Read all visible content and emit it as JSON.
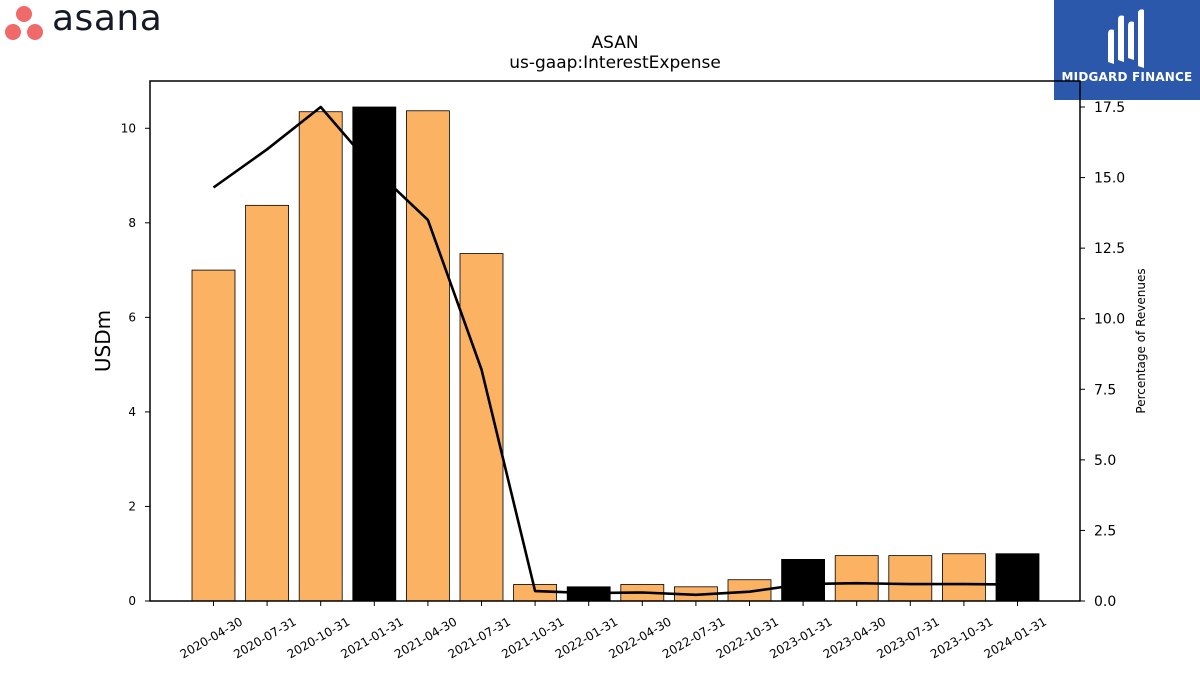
{
  "brand": {
    "company_logo_text": "asana",
    "company_logo_color": "#f06a6a",
    "publisher_logo_text": "MIDGARD FINANCE",
    "publisher_color": "#2b58ab"
  },
  "chart_data": {
    "type": "bar",
    "title": "ASAN",
    "subtitle": "us-gaap:InterestExpense",
    "ylabel": "USDm",
    "y2label": "Percentage of Revenues",
    "ylim": [
      0,
      11
    ],
    "y2lim": [
      0,
      17.5
    ],
    "y_ticks": [
      "0",
      "2",
      "4",
      "6",
      "8",
      "10"
    ],
    "y2_ticks": [
      "0.0",
      "2.5",
      "5.0",
      "7.5",
      "10.0",
      "12.5",
      "15.0",
      "17.5"
    ],
    "categories": [
      "2020-04-30",
      "2020-07-31",
      "2020-10-31",
      "2021-01-31",
      "2021-04-30",
      "2021-07-31",
      "2021-10-31",
      "2022-01-31",
      "2022-04-30",
      "2022-07-31",
      "2022-10-31",
      "2023-01-31",
      "2023-04-30",
      "2023-07-31",
      "2023-10-31",
      "2024-01-31"
    ],
    "series": [
      {
        "kind": "bar",
        "axis": "left",
        "values": [
          7.0,
          8.37,
          10.35,
          10.45,
          10.37,
          7.35,
          0.35,
          0.3,
          0.35,
          0.3,
          0.45,
          0.88,
          0.96,
          0.96,
          1.0,
          1.0
        ],
        "colors": [
          "#fbb263",
          "#fbb263",
          "#fbb263",
          "#000000",
          "#fbb263",
          "#fbb263",
          "#fbb263",
          "#000000",
          "#fbb263",
          "#fbb263",
          "#fbb263",
          "#000000",
          "#fbb263",
          "#fbb263",
          "#fbb263",
          "#000000"
        ]
      },
      {
        "kind": "line",
        "axis": "right",
        "color": "#000000",
        "values": [
          14.65,
          16.0,
          17.5,
          15.3,
          13.5,
          8.2,
          0.35,
          0.28,
          0.3,
          0.22,
          0.33,
          0.6,
          0.63,
          0.6,
          0.6,
          0.58
        ]
      }
    ],
    "grid": false,
    "legend": "none"
  }
}
